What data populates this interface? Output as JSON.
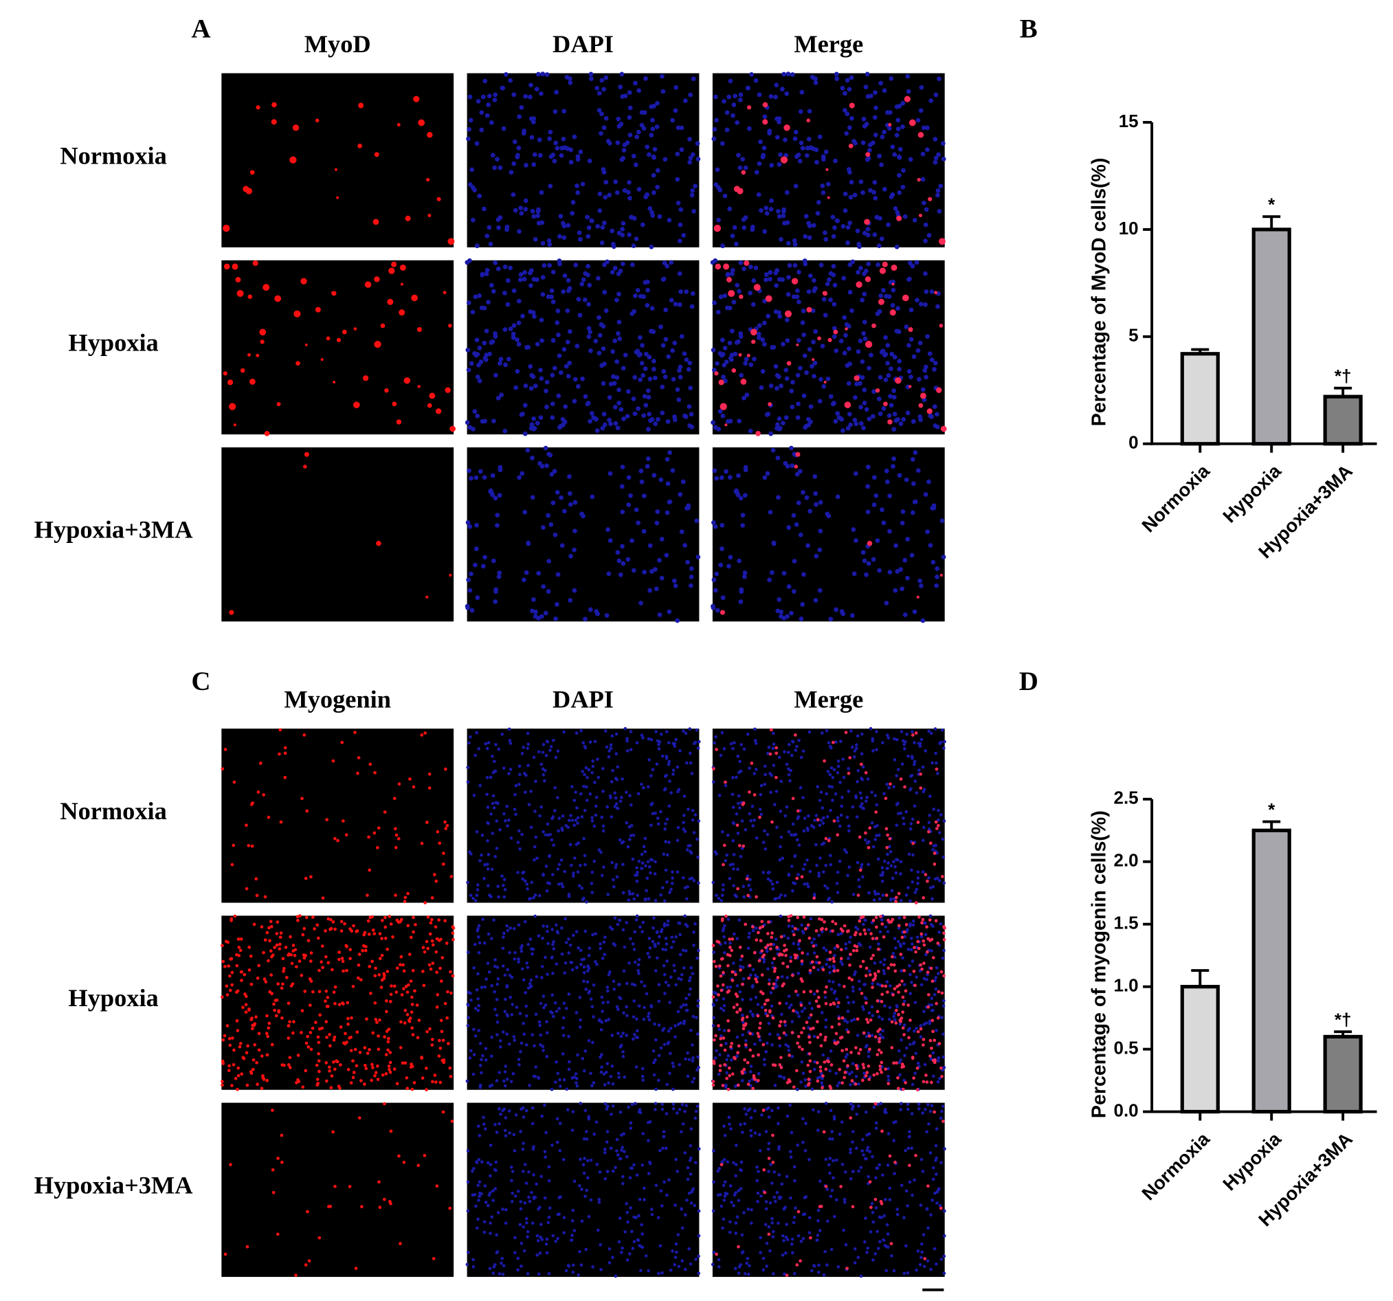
{
  "figure": {
    "panels": [
      {
        "label": "A",
        "columns": [
          "MyoD",
          "DAPI",
          "Merge"
        ],
        "rows": [
          "Normoxia",
          "Hypoxia",
          "Hypoxia+3MA"
        ]
      },
      {
        "label": "C",
        "columns": [
          "Myogenin",
          "DAPI",
          "Merge"
        ],
        "rows": [
          "Normoxia",
          "Hypoxia",
          "Hypoxia+3MA"
        ]
      }
    ]
  },
  "chart_data": [
    {
      "type": "bar",
      "panel_label": "B",
      "y_label": "Percentage of MyoD cells(%)",
      "categories": [
        "Normoxia",
        "Hypoxia",
        "Hypoxia+3MA"
      ],
      "values": [
        4.2,
        10.0,
        2.2
      ],
      "errors": [
        0.2,
        0.6,
        0.4
      ],
      "bar_labels": [
        null,
        "*",
        "*†"
      ],
      "colors": [
        "#d9d9d9",
        "#a6a6ac",
        "#7f7f7f"
      ],
      "ylim": [
        0,
        15
      ],
      "yticks": [
        0,
        5,
        10,
        15
      ]
    },
    {
      "type": "bar",
      "panel_label": "D",
      "y_label": "Percentage of myogenin cells(%)",
      "categories": [
        "Normoxia",
        "Hypoxia",
        "Hypoxia+3MA"
      ],
      "values": [
        1.0,
        2.25,
        0.6
      ],
      "errors": [
        0.13,
        0.07,
        0.04
      ],
      "bar_labels": [
        null,
        "*",
        "*†"
      ],
      "colors": [
        "#d9d9d9",
        "#a6a6ac",
        "#7f7f7f"
      ],
      "ylim": [
        0,
        2.5
      ],
      "yticks": [
        {
          "value": 0,
          "label": "0.0"
        },
        0.5,
        {
          "value": 1,
          "label": "1.0"
        },
        1.5,
        {
          "value": 2,
          "label": "2.0"
        },
        2.5
      ]
    }
  ]
}
